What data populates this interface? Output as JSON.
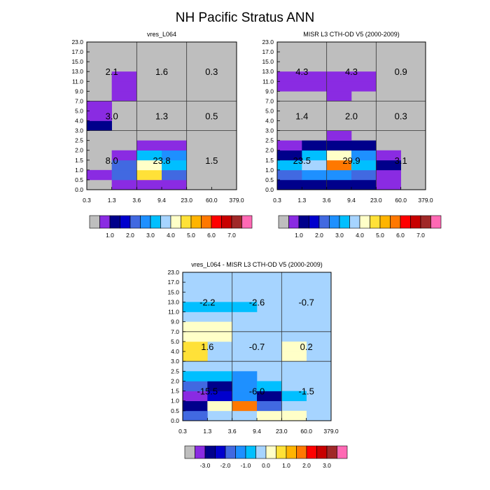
{
  "title": "NH Pacific Stratus ANN",
  "palette": [
    "#bebebe",
    "#8a2be2",
    "#00008b",
    "#0000cd",
    "#4169e1",
    "#1e90ff",
    "#00bfff",
    "#a6d4ff",
    "#ffffc8",
    "#ffe138",
    "#ffb400",
    "#ff7800",
    "#ff0000",
    "#c80000",
    "#a02828",
    "#ff69b4"
  ],
  "chart_data": [
    {
      "type": "heatmap",
      "title": "vres_L064",
      "x_ticks": [
        "0.3",
        "1.3",
        "3.6",
        "9.4",
        "23.0",
        "60.0",
        "379.0"
      ],
      "y_ticks": [
        "0.0",
        "0.5",
        "1.0",
        "1.5",
        "2.0",
        "2.5",
        "3.0",
        "4.0",
        "5.0",
        "7.0",
        "9.0",
        "11.0",
        "13.0",
        "15.0",
        "17.0",
        "23.0"
      ],
      "cells": [
        {
          "x": 0,
          "y": 0,
          "c": 0
        },
        {
          "x": 1,
          "y": 0,
          "c": 1
        },
        {
          "x": 2,
          "y": 0,
          "c": 1
        },
        {
          "x": 3,
          "y": 0,
          "c": 1
        },
        {
          "x": 0,
          "y": 1,
          "c": 1
        },
        {
          "x": 1,
          "y": 1,
          "c": 4
        },
        {
          "x": 2,
          "y": 1,
          "c": 9
        },
        {
          "x": 3,
          "y": 1,
          "c": 4
        },
        {
          "x": 1,
          "y": 2,
          "c": 4
        },
        {
          "x": 2,
          "y": 2,
          "c": 8
        },
        {
          "x": 3,
          "y": 2,
          "c": 6
        },
        {
          "x": 1,
          "y": 3,
          "c": 1
        },
        {
          "x": 2,
          "y": 3,
          "c": 6
        },
        {
          "x": 3,
          "y": 3,
          "c": 5
        },
        {
          "x": 2,
          "y": 4,
          "c": 1
        },
        {
          "x": 3,
          "y": 4,
          "c": 1
        },
        {
          "x": 0,
          "y": 6,
          "c": 2
        },
        {
          "x": 0,
          "y": 7,
          "c": 1
        },
        {
          "x": 0,
          "y": 8,
          "c": 1
        },
        {
          "x": 1,
          "y": 9,
          "c": 1
        },
        {
          "x": 1,
          "y": 10,
          "c": 1
        },
        {
          "x": 1,
          "y": 11,
          "c": 1
        }
      ],
      "box_labels": [
        {
          "xb": 0,
          "yb": 0,
          "text": "8.0"
        },
        {
          "xb": 1,
          "yb": 0,
          "text": "23.8"
        },
        {
          "xb": 2,
          "yb": 0,
          "text": "1.5"
        },
        {
          "xb": 0,
          "yb": 1,
          "text": "3.0"
        },
        {
          "xb": 1,
          "yb": 1,
          "text": "1.3"
        },
        {
          "xb": 2,
          "yb": 1,
          "text": "0.5"
        },
        {
          "xb": 0,
          "yb": 2,
          "text": "2.1"
        },
        {
          "xb": 1,
          "yb": 2,
          "text": "1.6"
        },
        {
          "xb": 2,
          "yb": 2,
          "text": "0.3"
        }
      ],
      "colorbar_labels": [
        "1.0",
        "2.0",
        "3.0",
        "4.0",
        "5.0",
        "6.0",
        "7.0"
      ]
    },
    {
      "type": "heatmap",
      "title": "MISR L3 CTH-OD V5 (2000-2009)",
      "x_ticks": [
        "0.3",
        "1.3",
        "3.6",
        "9.4",
        "23.0",
        "60.0",
        "379.0"
      ],
      "y_ticks": [
        "0.0",
        "0.5",
        "1.0",
        "1.5",
        "2.0",
        "2.5",
        "3.0",
        "4.0",
        "5.0",
        "7.0",
        "9.0",
        "11.0",
        "13.0",
        "15.0",
        "17.0",
        "23.0"
      ],
      "cells": [
        {
          "x": 0,
          "y": 0,
          "c": 2
        },
        {
          "x": 1,
          "y": 0,
          "c": 2
        },
        {
          "x": 2,
          "y": 0,
          "c": 2
        },
        {
          "x": 3,
          "y": 0,
          "c": 2
        },
        {
          "x": 4,
          "y": 0,
          "c": 1
        },
        {
          "x": 0,
          "y": 1,
          "c": 4
        },
        {
          "x": 1,
          "y": 1,
          "c": 5
        },
        {
          "x": 2,
          "y": 1,
          "c": 5
        },
        {
          "x": 3,
          "y": 1,
          "c": 4
        },
        {
          "x": 4,
          "y": 1,
          "c": 1
        },
        {
          "x": 0,
          "y": 2,
          "c": 6
        },
        {
          "x": 1,
          "y": 2,
          "c": 7
        },
        {
          "x": 2,
          "y": 2,
          "c": 11
        },
        {
          "x": 3,
          "y": 2,
          "c": 6
        },
        {
          "x": 4,
          "y": 2,
          "c": 2
        },
        {
          "x": 0,
          "y": 3,
          "c": 2
        },
        {
          "x": 1,
          "y": 3,
          "c": 6
        },
        {
          "x": 2,
          "y": 3,
          "c": 8
        },
        {
          "x": 3,
          "y": 3,
          "c": 5
        },
        {
          "x": 4,
          "y": 3,
          "c": 1
        },
        {
          "x": 0,
          "y": 4,
          "c": 1
        },
        {
          "x": 1,
          "y": 4,
          "c": 2
        },
        {
          "x": 2,
          "y": 4,
          "c": 2
        },
        {
          "x": 3,
          "y": 4,
          "c": 2
        },
        {
          "x": 2,
          "y": 5,
          "c": 1
        },
        {
          "x": 2,
          "y": 9,
          "c": 1
        },
        {
          "x": 0,
          "y": 10,
          "c": 1
        },
        {
          "x": 1,
          "y": 10,
          "c": 1
        },
        {
          "x": 2,
          "y": 10,
          "c": 1
        },
        {
          "x": 3,
          "y": 10,
          "c": 1
        },
        {
          "x": 0,
          "y": 11,
          "c": 1
        },
        {
          "x": 1,
          "y": 11,
          "c": 1
        },
        {
          "x": 2,
          "y": 11,
          "c": 1
        },
        {
          "x": 3,
          "y": 11,
          "c": 1
        }
      ],
      "box_labels": [
        {
          "xb": 0,
          "yb": 0,
          "text": "23.5"
        },
        {
          "xb": 1,
          "yb": 0,
          "text": "29.9"
        },
        {
          "xb": 2,
          "yb": 0,
          "text": "3.1"
        },
        {
          "xb": 0,
          "yb": 1,
          "text": "1.4"
        },
        {
          "xb": 1,
          "yb": 1,
          "text": "2.0"
        },
        {
          "xb": 2,
          "yb": 1,
          "text": "0.3"
        },
        {
          "xb": 0,
          "yb": 2,
          "text": "4.3"
        },
        {
          "xb": 1,
          "yb": 2,
          "text": "4.3"
        },
        {
          "xb": 2,
          "yb": 2,
          "text": "0.9"
        }
      ],
      "colorbar_labels": [
        "1.0",
        "2.0",
        "3.0",
        "4.0",
        "5.0",
        "6.0",
        "7.0"
      ]
    },
    {
      "type": "heatmap",
      "title": "vres_L064 - MISR L3 CTH-OD V5 (2000-2009)",
      "x_ticks": [
        "0.3",
        "1.3",
        "3.6",
        "9.4",
        "23.0",
        "60.0",
        "379.0"
      ],
      "y_ticks": [
        "0.0",
        "0.5",
        "1.0",
        "1.5",
        "2.0",
        "2.5",
        "3.0",
        "4.0",
        "5.0",
        "7.0",
        "9.0",
        "11.0",
        "13.0",
        "15.0",
        "17.0",
        "23.0"
      ],
      "background": 7,
      "cells": [
        {
          "x": 0,
          "y": 0,
          "c": 4
        },
        {
          "x": 3,
          "y": 0,
          "c": 8
        },
        {
          "x": 4,
          "y": 0,
          "c": 8
        },
        {
          "x": 0,
          "y": 1,
          "c": 2
        },
        {
          "x": 1,
          "y": 1,
          "c": 8
        },
        {
          "x": 2,
          "y": 1,
          "c": 11
        },
        {
          "x": 3,
          "y": 1,
          "c": 4
        },
        {
          "x": 0,
          "y": 2,
          "c": 1
        },
        {
          "x": 1,
          "y": 2,
          "c": 3
        },
        {
          "x": 2,
          "y": 2,
          "c": 5
        },
        {
          "x": 3,
          "y": 2,
          "c": 2
        },
        {
          "x": 4,
          "y": 2,
          "c": 6
        },
        {
          "x": 0,
          "y": 3,
          "c": 4
        },
        {
          "x": 1,
          "y": 3,
          "c": 2
        },
        {
          "x": 2,
          "y": 3,
          "c": 5
        },
        {
          "x": 3,
          "y": 3,
          "c": 6
        },
        {
          "x": 0,
          "y": 4,
          "c": 6
        },
        {
          "x": 1,
          "y": 4,
          "c": 6
        },
        {
          "x": 2,
          "y": 4,
          "c": 5
        },
        {
          "x": 0,
          "y": 6,
          "c": 9
        },
        {
          "x": 4,
          "y": 6,
          "c": 8
        },
        {
          "x": 0,
          "y": 7,
          "c": 9
        },
        {
          "x": 4,
          "y": 7,
          "c": 8
        },
        {
          "x": 0,
          "y": 8,
          "c": 8
        },
        {
          "x": 1,
          "y": 8,
          "c": 8
        },
        {
          "x": 0,
          "y": 9,
          "c": 8
        },
        {
          "x": 1,
          "y": 9,
          "c": 8
        },
        {
          "x": 0,
          "y": 11,
          "c": 6
        },
        {
          "x": 1,
          "y": 11,
          "c": 6
        },
        {
          "x": 2,
          "y": 11,
          "c": 6
        }
      ],
      "box_labels": [
        {
          "xb": 0,
          "yb": 0,
          "text": "-15.5"
        },
        {
          "xb": 1,
          "yb": 0,
          "text": "-6.0"
        },
        {
          "xb": 2,
          "yb": 0,
          "text": "-1.5"
        },
        {
          "xb": 0,
          "yb": 1,
          "text": "1.6"
        },
        {
          "xb": 1,
          "yb": 1,
          "text": "-0.7"
        },
        {
          "xb": 2,
          "yb": 1,
          "text": "0.2"
        },
        {
          "xb": 0,
          "yb": 2,
          "text": "-2.2"
        },
        {
          "xb": 1,
          "yb": 2,
          "text": "-2.6"
        },
        {
          "xb": 2,
          "yb": 2,
          "text": "-0.7"
        }
      ],
      "colorbar_labels": [
        "-3.0",
        "-2.0",
        "-1.0",
        "0.0",
        "1.0",
        "2.0",
        "3.0"
      ]
    }
  ]
}
